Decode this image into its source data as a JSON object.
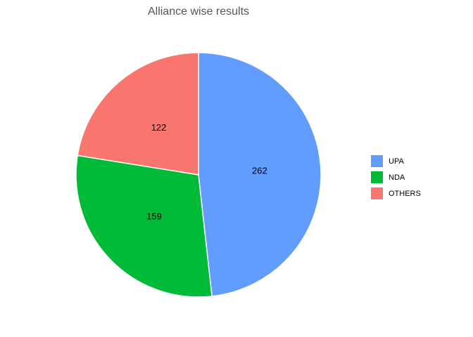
{
  "chart_data": {
    "type": "pie",
    "title": "Alliance wise results",
    "categories": [
      "UPA",
      "NDA",
      "OTHERS"
    ],
    "values": [
      262,
      159,
      122
    ],
    "colors": [
      "#619cff",
      "#00ba38",
      "#f8766d"
    ],
    "legend": "right"
  }
}
